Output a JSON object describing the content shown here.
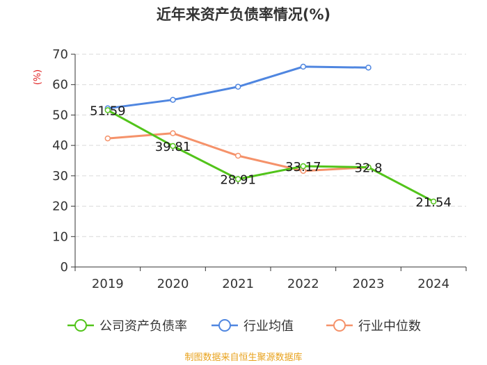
{
  "chart_data": {
    "type": "line",
    "title": "近年来资产负债率情况(%)",
    "ylabel": "(%)",
    "xlabel": "",
    "ylim": [
      0,
      70
    ],
    "yticks": [
      0,
      10,
      20,
      30,
      40,
      50,
      60,
      70
    ],
    "grid": true,
    "legend_position": "bottom",
    "categories": [
      "2019",
      "2020",
      "2021",
      "2022",
      "2023",
      "2024"
    ],
    "series": [
      {
        "name": "公司资产负债率",
        "color": "#52c41a",
        "values": [
          51.59,
          39.81,
          28.91,
          33.17,
          32.8,
          21.54
        ],
        "labels": [
          "51.59",
          "39.81",
          "28.91",
          "33.17",
          "32.8",
          "21.54"
        ]
      },
      {
        "name": "行业均值",
        "color": "#4f86e0",
        "values": [
          52.2,
          55.0,
          59.3,
          65.9,
          65.6,
          null
        ]
      },
      {
        "name": "行业中位数",
        "color": "#f5926a",
        "values": [
          42.3,
          44.0,
          36.6,
          31.6,
          32.8,
          null
        ]
      }
    ],
    "source": "制图数据来自恒生聚源数据库"
  }
}
